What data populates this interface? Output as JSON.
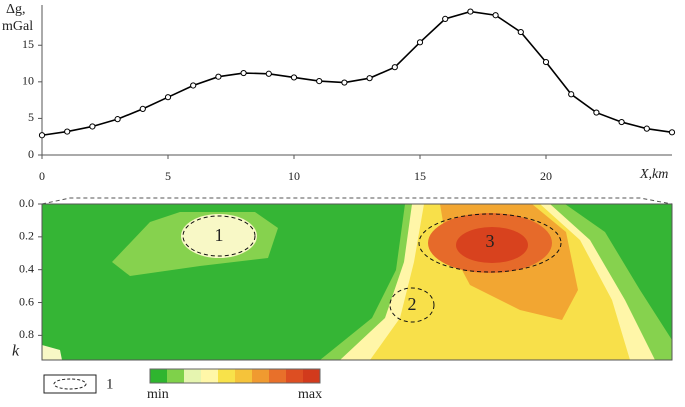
{
  "chart_data": [
    {
      "type": "line",
      "ylabel": "Δg,",
      "ylabel_unit": "mGal",
      "xlabel": "X,km",
      "x": [
        0,
        1,
        2,
        3,
        4,
        5,
        6,
        7,
        8,
        9,
        10,
        11,
        12,
        13,
        14,
        15,
        16,
        17,
        18,
        19,
        20,
        21,
        22,
        23,
        24,
        25
      ],
      "values": [
        2.7,
        3.2,
        3.9,
        4.9,
        6.3,
        7.9,
        9.5,
        10.7,
        11.2,
        11.1,
        10.6,
        10.1,
        9.9,
        10.5,
        12.0,
        15.4,
        18.6,
        19.6,
        19.1,
        16.8,
        12.7,
        8.3,
        5.8,
        4.5,
        3.6,
        3.1
      ],
      "color": "#000000",
      "xlim": [
        0,
        25
      ],
      "xticks": [
        0,
        5,
        10,
        15,
        20
      ],
      "ylim": [
        0,
        20.5
      ],
      "yticks": [
        0,
        5,
        10,
        15
      ]
    },
    {
      "type": "section",
      "ylabel": "k",
      "ylim": [
        0,
        0.95
      ],
      "yticks": [
        {
          "value": 0,
          "label": "0.0"
        },
        0.2,
        0.4,
        0.6,
        0.8
      ],
      "annotations": [
        "1",
        "2",
        "3"
      ],
      "colorbar": {
        "colors": [
          "#2fb52f",
          "#7fd14a",
          "#e6f5b0",
          "#fff7a8",
          "#f8e24a",
          "#f5c33a",
          "#f09a30",
          "#e8702a",
          "#dd4e22",
          "#d23a1c"
        ],
        "labels": [
          "min",
          "max"
        ]
      },
      "legend": "1"
    }
  ]
}
